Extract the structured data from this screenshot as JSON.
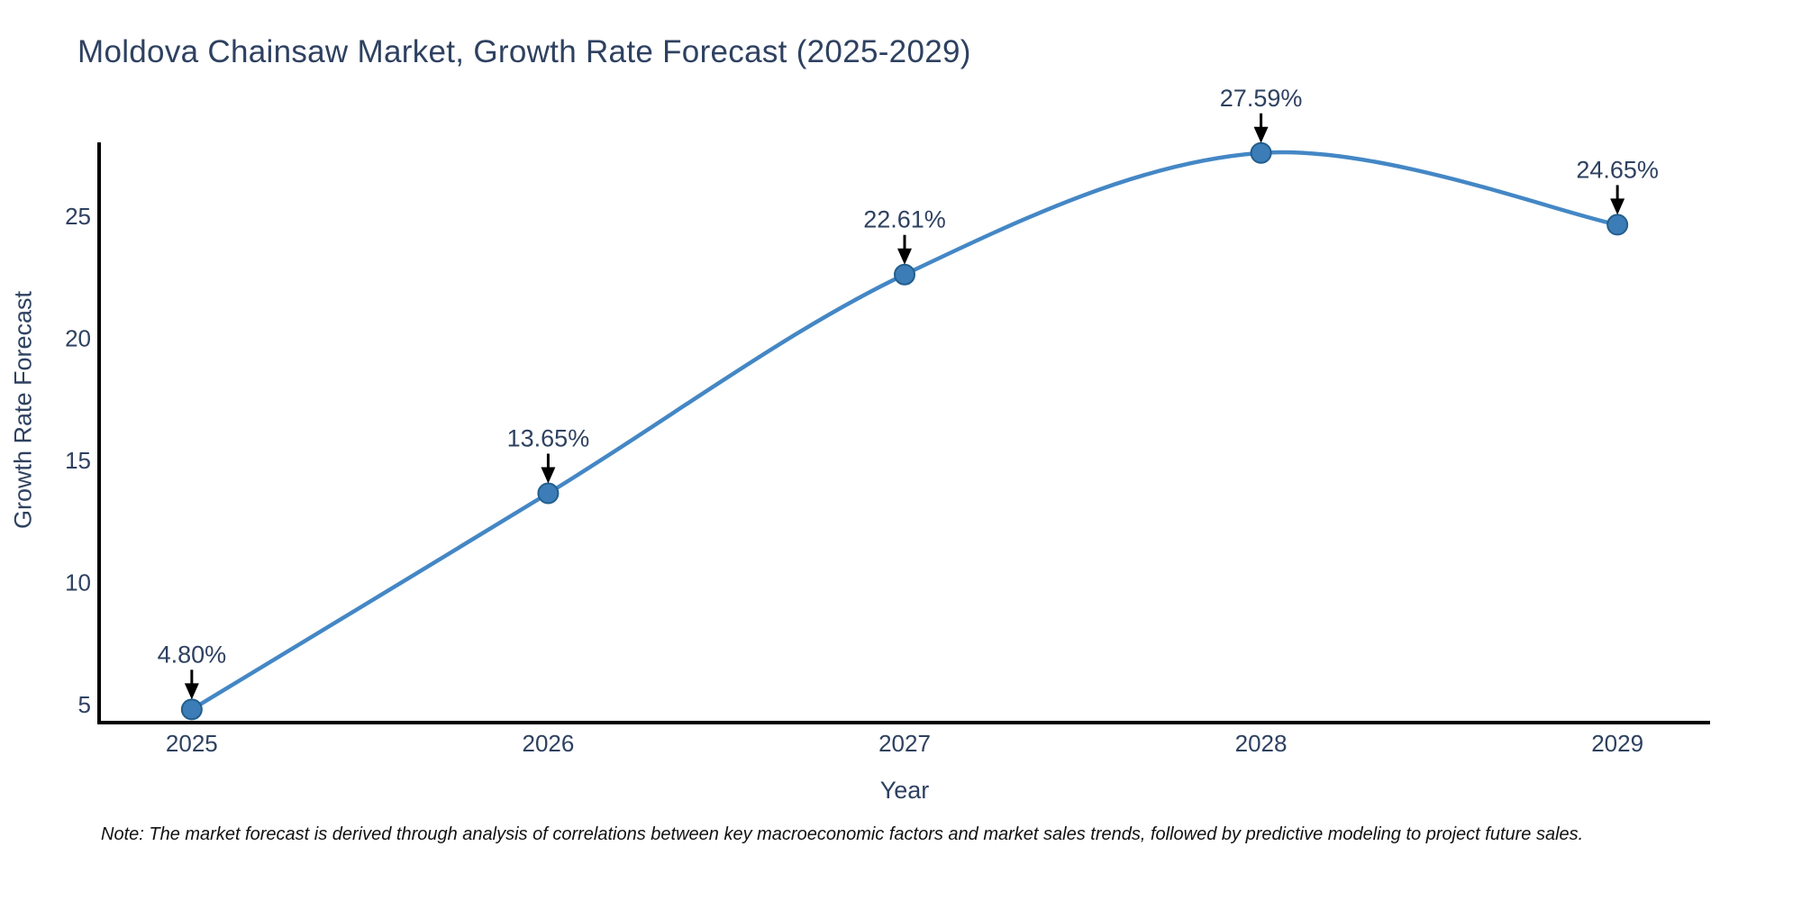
{
  "chart_data": {
    "type": "line",
    "curve": "spline",
    "title": "Moldova Chainsaw Market, Growth Rate Forecast (2025-2029)",
    "xlabel": "Year",
    "ylabel": "Growth Rate Forecast",
    "x": [
      2025,
      2026,
      2027,
      2028,
      2029
    ],
    "y": [
      4.8,
      13.65,
      22.61,
      27.59,
      24.65
    ],
    "point_labels": [
      "4.80%",
      "13.65%",
      "22.61%",
      "27.59%",
      "24.65%"
    ],
    "x_ticks": [
      "2025",
      "2026",
      "2027",
      "2028",
      "2029"
    ],
    "y_ticks": [
      5,
      10,
      15,
      20,
      25
    ],
    "xlim": [
      2024.74,
      2029.26
    ],
    "ylim": [
      4.26,
      27.95
    ],
    "grid": false,
    "legend_position": "none",
    "note": "Note: The market forecast is derived through analysis of correlations between key macroeconomic factors and market sales trends, followed by predictive modeling to project future sales.",
    "colors": {
      "line": "#4487c5",
      "marker_fill": "#3c7db8",
      "marker_edge": "#235e8c",
      "axis_line": "#000000",
      "arrow": "#000000",
      "text": "#2e4160",
      "note_text": "#111111",
      "background": "#ffffff"
    }
  }
}
